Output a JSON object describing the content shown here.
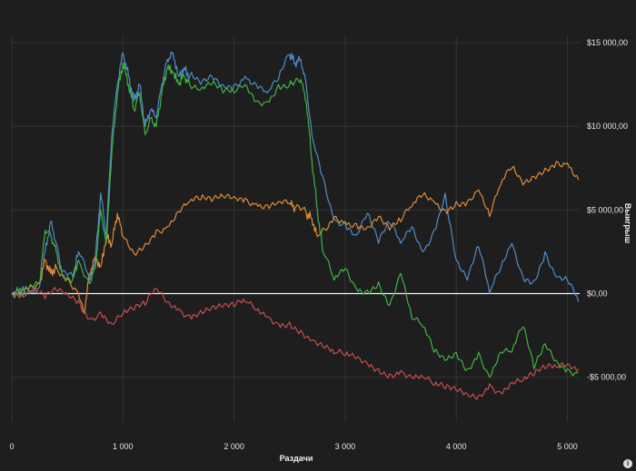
{
  "chart_data": {
    "type": "line",
    "xlabel": "Раздачи",
    "ylabel": "Выигрыш",
    "xlim": [
      0,
      5150
    ],
    "ylim": [
      -7500,
      15800
    ],
    "x_ticks": [
      {
        "value": 0,
        "label": "0"
      },
      {
        "value": 1000,
        "label": "1 000"
      },
      {
        "value": 2000,
        "label": "2 000"
      },
      {
        "value": 3000,
        "label": "3 000"
      },
      {
        "value": 4000,
        "label": "4 000"
      },
      {
        "value": 5000,
        "label": "5 000"
      }
    ],
    "y_ticks": [
      {
        "value": 15000,
        "label": "$15 000,00"
      },
      {
        "value": 10000,
        "label": "$10 000,00"
      },
      {
        "value": 5000,
        "label": "$5 000,00"
      },
      {
        "value": 0,
        "label": "$0,00"
      },
      {
        "value": -5000,
        "label": "-$5 000,00"
      }
    ],
    "zero_line": true,
    "grid": true,
    "series": [
      {
        "color": "#4f8cc9",
        "x": [
          0,
          150,
          250,
          300,
          350,
          400,
          450,
          550,
          600,
          700,
          750,
          800,
          850,
          900,
          950,
          1000,
          1050,
          1100,
          1150,
          1200,
          1250,
          1300,
          1350,
          1400,
          1450,
          1500,
          1550,
          1600,
          1700,
          1800,
          1900,
          2000,
          2100,
          2200,
          2300,
          2400,
          2500,
          2550,
          2600,
          2650,
          2700,
          2800,
          2900,
          3000,
          3100,
          3200,
          3300,
          3400,
          3500,
          3600,
          3700,
          3800,
          3900,
          4000,
          4100,
          4200,
          4300,
          4400,
          4500,
          4600,
          4700,
          4800,
          4900,
          5000,
          5100
        ],
        "y": [
          0,
          200,
          400,
          2500,
          4300,
          3000,
          1300,
          1000,
          2500,
          800,
          2000,
          6000,
          3500,
          9500,
          12500,
          14400,
          13000,
          11500,
          12500,
          10000,
          11000,
          10500,
          12500,
          14000,
          14400,
          13000,
          13500,
          13000,
          12500,
          13000,
          12500,
          12500,
          13000,
          12500,
          12000,
          12800,
          14300,
          13800,
          14000,
          12500,
          9500,
          7000,
          4500,
          4200,
          3500,
          4800,
          3000,
          4200,
          3000,
          4000,
          2500,
          3800,
          6000,
          2000,
          800,
          2800,
          0,
          1500,
          3000,
          1000,
          800,
          2500,
          1000,
          800,
          -500
        ]
      },
      {
        "color": "#e08b35",
        "x": [
          0,
          150,
          250,
          300,
          350,
          400,
          500,
          600,
          650,
          700,
          750,
          800,
          850,
          900,
          950,
          1000,
          1100,
          1200,
          1300,
          1400,
          1500,
          1600,
          1700,
          1800,
          1900,
          2000,
          2100,
          2200,
          2300,
          2400,
          2500,
          2550,
          2650,
          2700,
          2750,
          2850,
          2900,
          3000,
          3100,
          3200,
          3300,
          3400,
          3500,
          3600,
          3700,
          3800,
          3900,
          4000,
          4100,
          4200,
          4300,
          4400,
          4500,
          4600,
          4700,
          4800,
          4900,
          5000,
          5100
        ],
        "y": [
          0,
          300,
          600,
          2000,
          1200,
          1600,
          900,
          0,
          -1200,
          1200,
          2200,
          1600,
          3400,
          3000,
          4800,
          3400,
          2400,
          3000,
          3800,
          4000,
          4900,
          5500,
          5600,
          5500,
          5800,
          5800,
          5700,
          5400,
          5300,
          5500,
          5400,
          5100,
          4800,
          4500,
          3400,
          4000,
          4600,
          4300,
          4200,
          4000,
          4600,
          3800,
          4300,
          5200,
          5900,
          5500,
          5000,
          5500,
          5500,
          6200,
          4600,
          6500,
          7500,
          6500,
          7000,
          7500,
          7900,
          7800,
          6800
        ]
      },
      {
        "color": "#3db444",
        "x": [
          0,
          150,
          250,
          300,
          350,
          400,
          450,
          550,
          600,
          700,
          750,
          800,
          850,
          900,
          950,
          1000,
          1050,
          1100,
          1150,
          1200,
          1250,
          1300,
          1350,
          1400,
          1450,
          1500,
          1550,
          1600,
          1700,
          1800,
          1900,
          2000,
          2100,
          2200,
          2300,
          2400,
          2500,
          2550,
          2600,
          2650,
          2700,
          2750,
          2800,
          2900,
          3000,
          3100,
          3200,
          3300,
          3400,
          3500,
          3600,
          3700,
          3800,
          3900,
          4000,
          4100,
          4200,
          4300,
          4400,
          4500,
          4600,
          4700,
          4800,
          4900,
          5000,
          5100
        ],
        "y": [
          0,
          200,
          600,
          3800,
          3500,
          2500,
          1200,
          900,
          2000,
          600,
          1500,
          5000,
          3000,
          8500,
          12000,
          13800,
          12500,
          11000,
          12000,
          9500,
          10500,
          10000,
          12000,
          13500,
          13200,
          12500,
          13000,
          12500,
          12200,
          12500,
          12000,
          12000,
          12500,
          11500,
          11500,
          12500,
          12500,
          12700,
          12800,
          11500,
          8000,
          5000,
          2500,
          800,
          1500,
          300,
          200,
          700,
          -700,
          1200,
          -1500,
          -2000,
          -3500,
          -4000,
          -3500,
          -4500,
          -3500,
          -5000,
          -3500,
          -3500,
          -2000,
          -4500,
          -3000,
          -4000,
          -4500,
          -4700
        ]
      },
      {
        "color": "#c94d4d",
        "x": [
          0,
          100,
          200,
          300,
          400,
          500,
          600,
          700,
          800,
          900,
          1000,
          1100,
          1200,
          1300,
          1400,
          1500,
          1600,
          1700,
          1800,
          1900,
          2000,
          2100,
          2200,
          2300,
          2400,
          2500,
          2600,
          2700,
          2800,
          2900,
          3000,
          3100,
          3200,
          3300,
          3400,
          3500,
          3600,
          3700,
          3800,
          3900,
          4000,
          4100,
          4200,
          4300,
          4400,
          4500,
          4600,
          4700,
          4800,
          4900,
          5000,
          5100
        ],
        "y": [
          0,
          -200,
          100,
          -300,
          200,
          0,
          -400,
          -1500,
          -1100,
          -1800,
          -1200,
          -1000,
          -700,
          300,
          -500,
          -900,
          -1300,
          -1000,
          -800,
          -800,
          -800,
          -500,
          -1000,
          -1400,
          -1800,
          -1700,
          -2200,
          -2800,
          -3200,
          -3600,
          -3700,
          -3900,
          -4200,
          -4500,
          -4800,
          -4600,
          -5000,
          -5000,
          -5500,
          -5700,
          -5800,
          -6000,
          -6100,
          -5400,
          -5900,
          -5300,
          -5200,
          -4900,
          -4500,
          -4400,
          -4200,
          -4500
        ]
      }
    ]
  }
}
